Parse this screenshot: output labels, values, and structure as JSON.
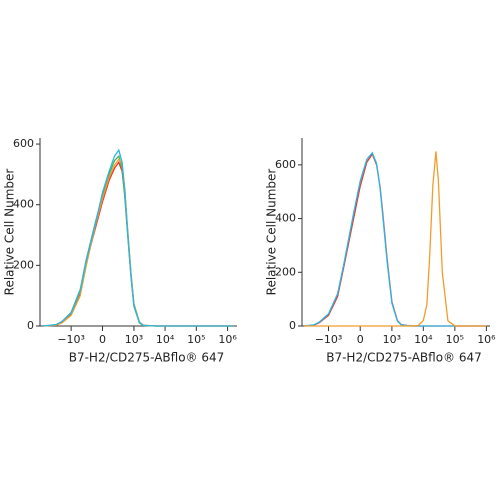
{
  "chart_data": [
    {
      "type": "line",
      "xscale": "biexponential",
      "ylabel": "Relative Cell Number",
      "xlabel": "B7-H2/CD275-ABflo® 647",
      "x": [
        -8000,
        -3000,
        -2000,
        -1000,
        -500,
        -300,
        -100,
        0,
        100,
        200,
        300,
        400,
        500,
        600,
        800,
        1000,
        1500,
        2000,
        5000,
        100000,
        1500000
      ],
      "series": [
        {
          "color": "#e8392b",
          "values": [
            0,
            3,
            12,
            40,
            110,
            210,
            330,
            410,
            480,
            520,
            540,
            510,
            430,
            330,
            170,
            70,
            12,
            2,
            0,
            0,
            0
          ]
        },
        {
          "color": "#4caf50",
          "values": [
            0,
            4,
            14,
            45,
            120,
            220,
            350,
            430,
            500,
            545,
            560,
            520,
            420,
            320,
            160,
            65,
            10,
            2,
            0,
            0,
            0
          ]
        },
        {
          "color": "#f39c2a",
          "values": [
            0,
            3,
            10,
            35,
            100,
            200,
            340,
            420,
            490,
            530,
            550,
            535,
            450,
            340,
            175,
            75,
            14,
            3,
            0,
            0,
            0
          ]
        },
        {
          "color": "#29b6e8",
          "values": [
            0,
            5,
            15,
            42,
            115,
            215,
            345,
            440,
            510,
            560,
            580,
            540,
            440,
            330,
            165,
            70,
            12,
            2,
            0,
            0,
            0
          ]
        }
      ],
      "xlim": [
        -10000,
        2000000
      ],
      "xticks": [
        {
          "value": -1000,
          "label": "−10³"
        },
        0,
        {
          "value": 1000,
          "label": "10³"
        },
        {
          "value": 10000,
          "label": "10⁴"
        },
        {
          "value": 100000,
          "label": "10⁵"
        },
        {
          "value": 1000000,
          "label": "10⁶"
        }
      ],
      "ylim": [
        0,
        620
      ],
      "yticks": [
        0,
        200,
        400,
        600
      ]
    },
    {
      "type": "line",
      "xscale": "biexponential",
      "ylabel": "Relative Cell Number",
      "xlabel": "B7-H2/CD275-ABflo® 647",
      "x": [
        -6000,
        -3000,
        -2000,
        -1000,
        -500,
        -300,
        -100,
        0,
        100,
        200,
        300,
        400,
        500,
        700,
        1000,
        1500,
        2000,
        4000,
        7000,
        10000,
        13000,
        16000,
        20000,
        25000,
        30000,
        40000,
        60000,
        100000,
        1000000
      ],
      "series": [
        {
          "color": "#e8392b",
          "values": [
            0,
            3,
            12,
            40,
            110,
            220,
            400,
            520,
            610,
            640,
            600,
            520,
            420,
            250,
            90,
            20,
            5,
            0,
            0,
            0,
            0,
            0,
            0,
            0,
            0,
            0,
            0,
            0,
            0
          ]
        },
        {
          "color": "#29b6e8",
          "values": [
            0,
            4,
            14,
            45,
            120,
            230,
            420,
            540,
            620,
            645,
            605,
            515,
            410,
            240,
            85,
            18,
            4,
            0,
            0,
            0,
            0,
            0,
            0,
            0,
            0,
            0,
            0,
            0,
            0
          ]
        },
        {
          "color": "#f39c2a",
          "values": [
            0,
            0,
            0,
            0,
            0,
            0,
            0,
            0,
            0,
            0,
            0,
            0,
            0,
            0,
            0,
            0,
            0,
            0,
            2,
            20,
            80,
            260,
            520,
            650,
            540,
            200,
            20,
            0,
            0
          ]
        }
      ],
      "xlim": [
        -7000,
        1300000
      ],
      "xticks": [
        {
          "value": -1000,
          "label": "−10³"
        },
        0,
        {
          "value": 1000,
          "label": "10³"
        },
        {
          "value": 10000,
          "label": "10⁴"
        },
        {
          "value": 100000,
          "label": "10⁵"
        },
        {
          "value": 1000000,
          "label": "10⁶"
        }
      ],
      "ylim": [
        0,
        700
      ],
      "yticks": [
        0,
        200,
        400,
        600
      ]
    }
  ]
}
